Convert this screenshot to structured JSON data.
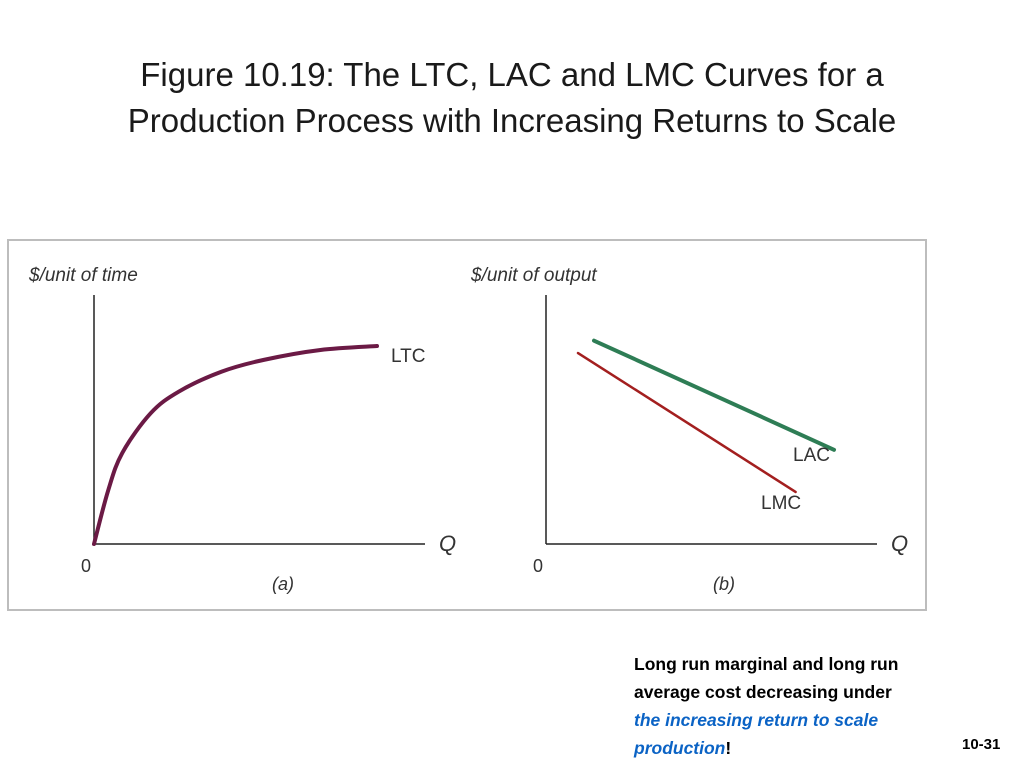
{
  "title": {
    "line1": "Figure 10.19: The LTC, LAC and LMC Curves for a",
    "line2": "Production Process with Increasing Returns to Scale"
  },
  "chart_data": [
    {
      "panel": "(a)",
      "type": "line",
      "ylabel": "$/unit of time",
      "xlabel": "Q",
      "origin_label": "0",
      "grid": false,
      "series": [
        {
          "name": "LTC",
          "color": "#6b1a45",
          "shape": "concave increasing",
          "points": [
            [
              0,
              0
            ],
            [
              0.05,
              0.27
            ],
            [
              0.1,
              0.46
            ],
            [
              0.2,
              0.66
            ],
            [
              0.3,
              0.77
            ],
            [
              0.45,
              0.87
            ],
            [
              0.6,
              0.93
            ],
            [
              0.8,
              0.98
            ],
            [
              1.0,
              1.0
            ]
          ]
        }
      ]
    },
    {
      "panel": "(b)",
      "type": "line",
      "ylabel": "$/unit of output",
      "xlabel": "Q",
      "origin_label": "0",
      "grid": false,
      "series": [
        {
          "name": "LAC",
          "color": "#2e7d55",
          "points": [
            [
              0.15,
              0.82
            ],
            [
              0.9,
              0.38
            ]
          ]
        },
        {
          "name": "LMC",
          "color": "#a31f1f",
          "points": [
            [
              0.1,
              0.77
            ],
            [
              0.78,
              0.21
            ]
          ]
        }
      ]
    }
  ],
  "caption": {
    "line1": "Long run marginal and long run",
    "line2": "average cost decreasing under",
    "emphasis1": "the increasing return to scale",
    "emphasis2": "production",
    "ending": "!"
  },
  "slide_number": "10-31"
}
